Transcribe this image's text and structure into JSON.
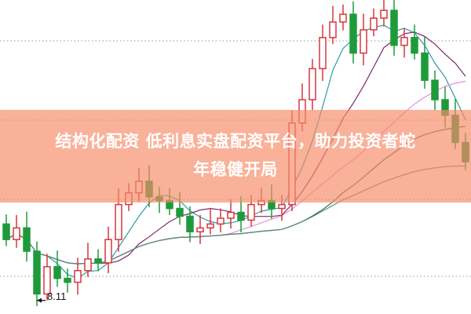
{
  "banner": {
    "line1": "结构化配资 低利息实盘配资平台，助力投资者蛇",
    "line2": "年稳健开局",
    "color": "#f68c69"
  },
  "chart_data": {
    "type": "candlestick",
    "title": "",
    "annotations": [
      {
        "text": "8.11",
        "kind": "low-price-marker"
      }
    ],
    "up_color": "#d9363e",
    "down_color": "#1f9a3a",
    "grid": "dotted horizontal",
    "ylim": [
      7.9,
      12.75
    ],
    "open": [
      9.29,
      9.05,
      9.23,
      8.87,
      8.21,
      8.63,
      8.45,
      8.39,
      8.57,
      8.75,
      8.69,
      9.05,
      9.59,
      9.77,
      9.95,
      9.71,
      9.65,
      9.53,
      9.41,
      9.17,
      9.23,
      9.29,
      9.38,
      9.47,
      9.35,
      9.59,
      9.65,
      9.53,
      9.59,
      10.85,
      11.21,
      11.69,
      12.17,
      12.41,
      12.53,
      11.93,
      12.29,
      12.47,
      12.59,
      12.05,
      12.17,
      11.93,
      11.51,
      11.21,
      10.97,
      10.55
    ],
    "close": [
      9.05,
      9.23,
      8.87,
      8.21,
      8.63,
      8.45,
      8.39,
      8.57,
      8.75,
      8.69,
      9.05,
      9.59,
      9.77,
      9.95,
      9.71,
      9.65,
      9.53,
      9.41,
      9.17,
      9.23,
      9.29,
      9.38,
      9.47,
      9.35,
      9.59,
      9.65,
      9.53,
      9.59,
      10.85,
      11.21,
      11.69,
      12.17,
      12.41,
      12.53,
      11.93,
      12.29,
      12.47,
      12.59,
      12.05,
      12.17,
      11.93,
      11.51,
      11.21,
      10.97,
      10.55,
      10.25
    ],
    "ma_colors": [
      "#2a9d9d",
      "#7a2a6a",
      "#e58fe0",
      "#2f6f3f",
      "#5a8a7a"
    ]
  }
}
